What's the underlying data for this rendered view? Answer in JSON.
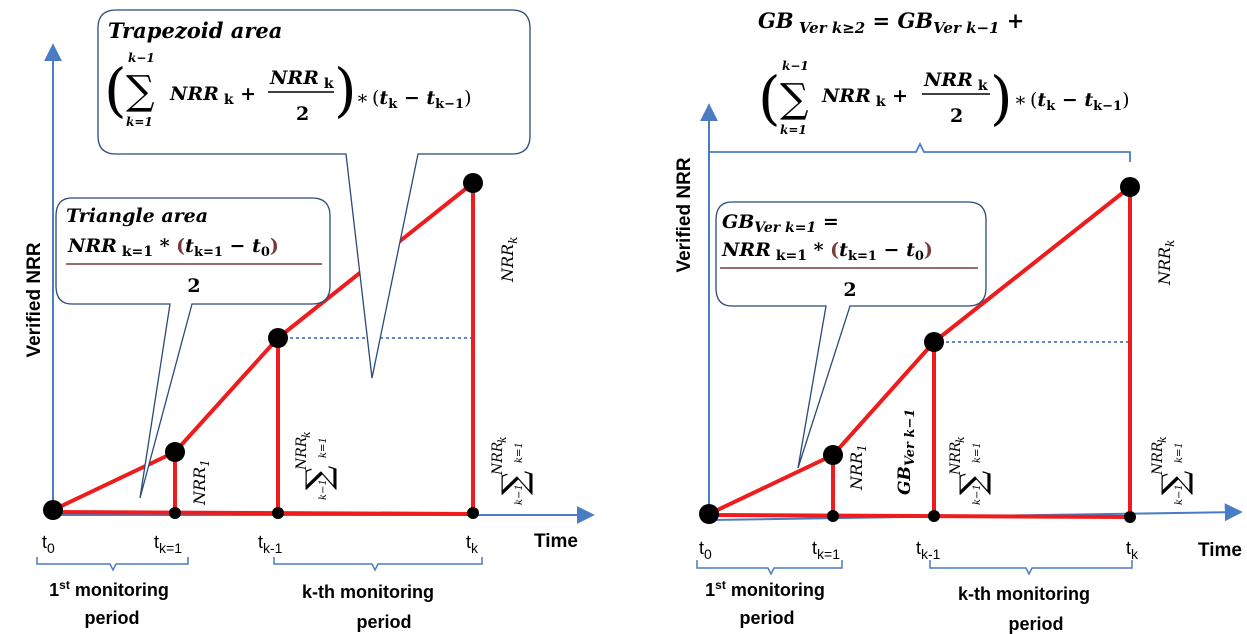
{
  "left": {
    "y_axis_label": "Verified NRR",
    "x_axis_label": "Time",
    "ticks": {
      "t0": "t",
      "t0_sub": "0",
      "tk1": "t",
      "tk1_sub": "k=1",
      "tkm1": "t",
      "tkm1_sub": "k-1",
      "tk": "t",
      "tk_sub": "k"
    },
    "period1": {
      "line1": "1",
      "sup": "st",
      "line1_rest": " monitoring",
      "line2": "period"
    },
    "periodk": {
      "line1": "k-th monitoring",
      "line2": "period"
    },
    "triangle_callout": {
      "title": "Triangle area",
      "numerator": "NRR k=1 * (t k=1 − t 0)",
      "denominator": "2"
    },
    "trapezoid_callout": {
      "title": "Trapezoid area",
      "formula": "(Σ k=1..k−1 NRR k + NRR k / 2) * (t k − t k−1)"
    },
    "labels": {
      "nrr1": "NRR",
      "nrr1_sub": "1",
      "nrrk": "NRR",
      "nrrk_sub": "k",
      "sum_label": "Σ NRR k, k=1..k−1"
    }
  },
  "right": {
    "y_axis_label": "Verified NRR",
    "x_axis_label": "Time",
    "ticks": {
      "t0": "t",
      "t0_sub": "0",
      "tk1": "t",
      "tk1_sub": "k=1",
      "tkm1": "t",
      "tkm1_sub": "k-1",
      "tk": "t",
      "tk_sub": "k"
    },
    "period1": {
      "line1": "1",
      "sup": "st",
      "line1_rest": " monitoring",
      "line2": "period"
    },
    "periodk": {
      "line1": "k-th monitoring",
      "line2": "period"
    },
    "gb1_callout": {
      "lhs": "GB Ver k=1 =",
      "numerator": "NRR k=1 * (t k=1 − t 0)",
      "denominator": "2"
    },
    "gbk_formula": "GB Ver k≥2 = GB Ver k−1 + (Σ k=1..k−1 NRR k + NRR k / 2) * (t k − t k−1)",
    "labels": {
      "gb_prev": "GB",
      "gb_prev_sub": "Ver k−1",
      "nrr1": "NRR",
      "nrr1_sub": "1",
      "nrrk": "NRR",
      "nrrk_sub": "k"
    }
  },
  "colors": {
    "axis": "#4a7cc4",
    "series": "#ee1c1c",
    "point": "#000000",
    "callout_border": "#2a4a7a",
    "dotted": "#2f5ea8"
  }
}
